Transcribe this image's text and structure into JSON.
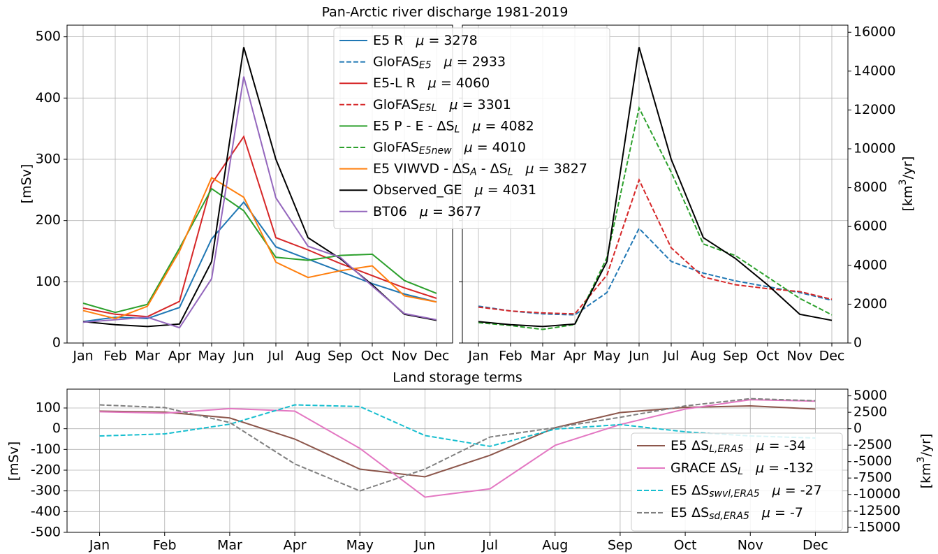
{
  "chart_data": [
    {
      "type": "line",
      "title": "Pan-Arctic river discharge 1981-2019",
      "ylabel": [
        "[mSv]"
      ],
      "mu_label": "μ =",
      "categories": [
        "Jan",
        "Feb",
        "Mar",
        "Apr",
        "May",
        "Jun",
        "Jul",
        "Aug",
        "Sep",
        "Oct",
        "Nov",
        "Dec"
      ],
      "ylim": [
        0,
        519
      ],
      "yticks": [
        0,
        100,
        200,
        300,
        400,
        500
      ],
      "grid": true,
      "legend": "upper center",
      "series": [
        {
          "name": [
            "E5 R"
          ],
          "mu": 3278,
          "color": "#1f77b4",
          "style": "solid",
          "values": [
            35,
            42,
            40,
            58,
            170,
            230,
            157,
            137,
            117,
            97,
            80,
            67
          ]
        },
        {
          "name": [
            "E5-L R"
          ],
          "mu": 4060,
          "color": "#d62728",
          "style": "solid",
          "values": [
            57,
            47,
            43,
            68,
            260,
            337,
            172,
            152,
            130,
            110,
            90,
            73
          ]
        },
        {
          "name": [
            "E5 P - E - ΔS",
            "L"
          ],
          "mu": 4082,
          "color": "#2ca02c",
          "style": "solid",
          "values": [
            65,
            50,
            63,
            155,
            252,
            216,
            140,
            135,
            143,
            145,
            102,
            81
          ]
        },
        {
          "name": [
            "E5 VIWVD - ΔS",
            "A",
            " - ΔS",
            "L"
          ],
          "mu": 3827,
          "color": "#ff7f0e",
          "style": "solid",
          "values": [
            53,
            40,
            60,
            150,
            270,
            238,
            132,
            107,
            118,
            126,
            77,
            67
          ]
        },
        {
          "name": [
            "Observed_GE"
          ],
          "mu": 4031,
          "color": "#000000",
          "style": "solid",
          "values": [
            35,
            30,
            27,
            31,
            133,
            483,
            300,
            172,
            138,
            95,
            47,
            37
          ]
        },
        {
          "name": [
            "BT06"
          ],
          "mu": 3677,
          "color": "#9467bd",
          "style": "solid",
          "values": [
            34,
            38,
            42,
            25,
            105,
            435,
            237,
            158,
            140,
            93,
            48,
            38
          ]
        }
      ]
    },
    {
      "type": "line",
      "y2label": [
        "[km",
        "3",
        "/yr]"
      ],
      "categories": [
        "Jan",
        "Feb",
        "Mar",
        "Apr",
        "May",
        "Jun",
        "Jul",
        "Aug",
        "Sep",
        "Oct",
        "Nov",
        "Dec"
      ],
      "ylim": [
        0,
        519
      ],
      "yticks": [
        0,
        100,
        200,
        300,
        400,
        500
      ],
      "ytick_labels": false,
      "y2lim": [
        0,
        16367
      ],
      "y2ticks": [
        0,
        2000,
        4000,
        6000,
        8000,
        10000,
        12000,
        14000,
        16000
      ],
      "grid": true,
      "series": [
        {
          "name": [
            "GloFAS",
            "E5"
          ],
          "mu": 2933,
          "color": "#1f77b4",
          "style": "dashed",
          "axis": "y2",
          "values": [
            1900,
            1650,
            1500,
            1450,
            2600,
            5900,
            4200,
            3600,
            3200,
            2900,
            2600,
            2200
          ]
        },
        {
          "name": [
            "GloFAS",
            "E5L"
          ],
          "mu": 3301,
          "color": "#d62728",
          "style": "dashed",
          "axis": "y2",
          "values": [
            1850,
            1650,
            1550,
            1500,
            3500,
            8400,
            4900,
            3400,
            3000,
            2800,
            2650,
            2250
          ]
        },
        {
          "name": [
            "GloFAS",
            "E5new"
          ],
          "mu": 4010,
          "color": "#2ca02c",
          "style": "dashed",
          "axis": "y2",
          "values": [
            1050,
            900,
            700,
            950,
            4400,
            12100,
            8800,
            5100,
            4500,
            3400,
            2300,
            1450
          ]
        },
        {
          "color": "#000000",
          "style": "solid",
          "values": [
            35,
            30,
            27,
            31,
            133,
            483,
            300,
            172,
            138,
            95,
            47,
            37
          ]
        }
      ]
    },
    {
      "type": "line",
      "title": "Land storage terms",
      "ylabel": [
        "[mSv]"
      ],
      "y2label": [
        "[km",
        "3",
        "/yr]"
      ],
      "mu_label": "μ =",
      "categories": [
        "Jan",
        "Feb",
        "Mar",
        "Apr",
        "May",
        "Jun",
        "Jul",
        "Aug",
        "Sep",
        "Oct",
        "Nov",
        "Dec"
      ],
      "ylim": [
        -500,
        191
      ],
      "yticks": [
        -500,
        -400,
        -300,
        -200,
        -100,
        0,
        100
      ],
      "y2lim": [
        -15768,
        6023
      ],
      "y2ticks": [
        -15000,
        -12500,
        -10000,
        -7500,
        -5000,
        -2500,
        0,
        2500,
        5000
      ],
      "grid": true,
      "legend": "lower right",
      "series": [
        {
          "name": [
            "E5 ΔS",
            "L,ERA5"
          ],
          "mu": -34,
          "color": "#8c564b",
          "style": "solid",
          "values": [
            85,
            80,
            52,
            -50,
            -195,
            -232,
            -128,
            5,
            78,
            103,
            110,
            95
          ]
        },
        {
          "name": [
            "GRACE ΔS",
            "L"
          ],
          "mu": -132,
          "color": "#e377c2",
          "style": "solid",
          "values": [
            82,
            75,
            97,
            85,
            -95,
            -330,
            -290,
            -80,
            20,
            95,
            140,
            133
          ]
        },
        {
          "name": [
            "E5 ΔS",
            "swvl,ERA5"
          ],
          "mu": -27,
          "color": "#17becf",
          "style": "dashed",
          "values": [
            -35,
            -25,
            22,
            115,
            107,
            -33,
            -85,
            -2,
            20,
            -15,
            -35,
            -45
          ]
        },
        {
          "name": [
            "E5 ΔS",
            "sd,ERA5"
          ],
          "mu": -7,
          "color": "#7f7f7f",
          "style": "dashed",
          "values": [
            115,
            102,
            30,
            -170,
            -300,
            -195,
            -40,
            5,
            55,
            110,
            145,
            135
          ]
        }
      ]
    }
  ]
}
